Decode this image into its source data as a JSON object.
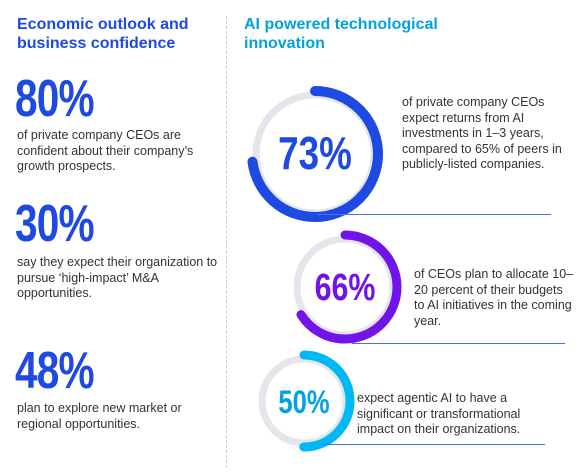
{
  "left": {
    "heading": "Economic outlook and business confidence",
    "stats": [
      {
        "value": "80%",
        "text": "of private company CEOs are confident about their company’s growth prospects."
      },
      {
        "value": "30%",
        "text": "say they expect their organization to pursue ‘high-impact’ M&A opportunities."
      },
      {
        "value": "48%",
        "text": "plan to explore new market or regional opportunities."
      }
    ]
  },
  "right": {
    "heading": "AI powered technological innovation",
    "stats": [
      {
        "value": "73%",
        "percent": 73,
        "color": "#1e49e2",
        "text": "of private company CEOs expect returns from AI investments in 1–3 years, compared to 65% of peers in publicly-listed companies."
      },
      {
        "value": "66%",
        "percent": 66,
        "color": "#7213ea",
        "text": "of CEOs plan to allocate 10–20 percent of their budgets to AI initiatives in the coming year."
      },
      {
        "value": "50%",
        "percent": 50,
        "color": "#00b8f5",
        "text": "expect agentic AI to have a significant or transformational impact on their organizations."
      }
    ]
  },
  "colors": {
    "primary_blue": "#1e49e2",
    "cyan": "#00a3e0",
    "purple": "#7213ea",
    "ring_track": "#e4e6ec"
  }
}
